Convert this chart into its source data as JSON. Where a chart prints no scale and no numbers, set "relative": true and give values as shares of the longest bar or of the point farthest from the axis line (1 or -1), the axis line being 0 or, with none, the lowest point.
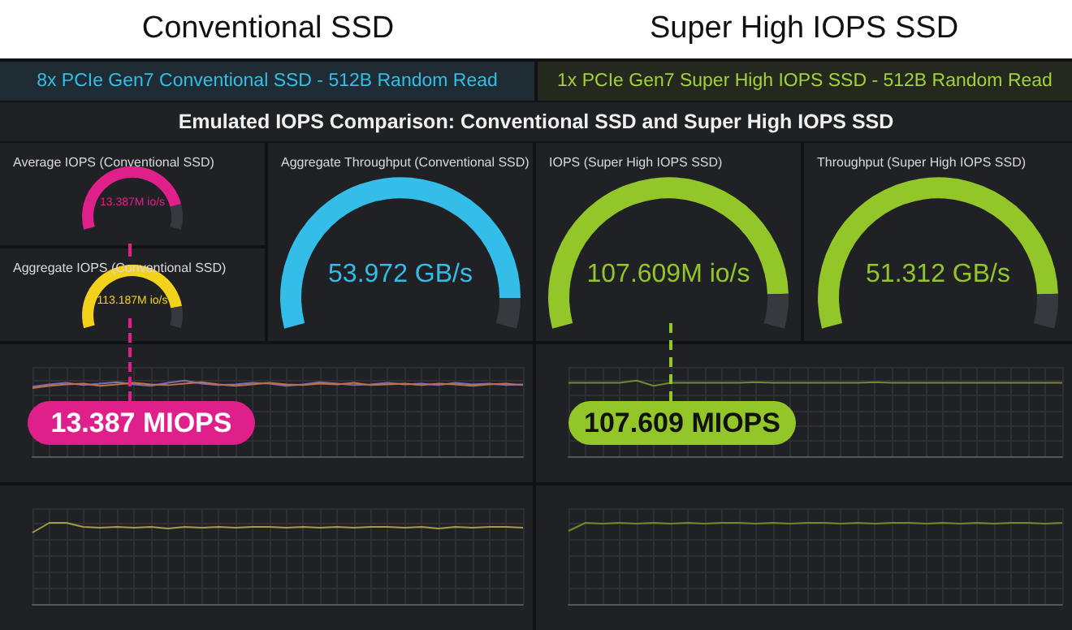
{
  "chart_data": [
    {
      "type": "other",
      "title": "Emulated IOPS Comparison: Conventional SSD and Super High IOPS SSD",
      "annotations": [
        "Conventional SSD",
        "Super High IOPS SSD",
        "8x PCIe Gen7 Conventional SSD - 512B Random Read",
        "1x PCIe Gen7 Super High IOPS SSD - 512B Random Read"
      ]
    },
    {
      "type": "donut",
      "title": "Average IOPS (Conventional SSD)",
      "categories": [
        null,
        null
      ],
      "values": [
        86,
        14
      ],
      "colors": [
        "#e0208a",
        "#38393e"
      ],
      "annotations": [
        "13.387M io/s"
      ]
    },
    {
      "type": "donut",
      "title": "Aggregate IOPS (Conventional SSD)",
      "categories": [
        null,
        null
      ],
      "values": [
        88,
        12
      ],
      "colors": [
        "#f2d21c",
        "#38393e"
      ],
      "annotations": [
        "113.187M io/s"
      ]
    },
    {
      "type": "donut",
      "title": "Aggregate Throughput (Conventional SSD)",
      "categories": [
        null,
        null
      ],
      "values": [
        93,
        7
      ],
      "colors": [
        "#33bde8",
        "#38393e"
      ],
      "annotations": [
        "53.972 GB/s"
      ]
    },
    {
      "type": "donut",
      "title": "IOPS (Super High IOPS SSD)",
      "categories": [
        null,
        null
      ],
      "values": [
        92,
        8
      ],
      "colors": [
        "#93c629",
        "#38393e"
      ],
      "annotations": [
        "107.609M io/s"
      ]
    },
    {
      "type": "donut",
      "title": "Throughput (Super High IOPS SSD)",
      "categories": [
        null,
        null
      ],
      "values": [
        92,
        8
      ],
      "colors": [
        "#93c629",
        "#38393e"
      ],
      "annotations": [
        "51.312 GB/s"
      ]
    },
    {
      "type": "line",
      "relative": true,
      "grid": true,
      "categories": [
        null,
        null,
        null,
        null,
        null,
        null,
        null,
        null,
        null,
        null,
        null,
        null,
        null,
        null,
        null,
        null,
        null,
        null,
        null,
        null,
        null,
        null,
        null,
        null,
        null,
        null,
        null,
        null,
        null,
        null
      ],
      "series": [
        {
          "color": "#7a6fb0",
          "values": [
            0.92,
            0.95,
            0.97,
            0.94,
            0.96,
            0.98,
            0.95,
            0.93,
            0.97,
            1,
            0.96,
            0.94,
            0.95,
            0.97,
            0.96,
            0.93,
            0.95,
            0.98,
            0.96,
            0.94,
            0.95,
            0.97,
            0.95,
            0.96,
            0.94,
            0.97,
            0.95,
            0.96,
            0.94,
            0.95
          ]
        },
        {
          "color": "#c2704a",
          "values": [
            0.9,
            0.93,
            0.95,
            0.96,
            0.93,
            0.95,
            0.97,
            0.95,
            0.94,
            0.96,
            0.98,
            0.95,
            0.93,
            0.95,
            0.97,
            0.95,
            0.94,
            0.96,
            0.95,
            0.97,
            0.94,
            0.95,
            0.96,
            0.94,
            0.96,
            0.95,
            0.93,
            0.95,
            0.96,
            0.94
          ]
        }
      ],
      "annotations": [
        "13.387 MIOPS"
      ]
    },
    {
      "type": "line",
      "relative": true,
      "grid": true,
      "categories": [
        null,
        null,
        null,
        null,
        null,
        null,
        null,
        null,
        null,
        null,
        null,
        null,
        null,
        null,
        null,
        null,
        null,
        null,
        null,
        null,
        null,
        null,
        null,
        null,
        null,
        null,
        null,
        null,
        null,
        null
      ],
      "series": [
        {
          "color": "#6f8a2c",
          "values": [
            0.97,
            0.97,
            0.97,
            0.97,
            1,
            0.93,
            0.97,
            0.97,
            0.97,
            0.97,
            0.97,
            0.98,
            0.97,
            0.97,
            0.97,
            0.97,
            0.97,
            0.97,
            0.98,
            0.97,
            0.97,
            0.97,
            0.97,
            0.97,
            0.97,
            0.97,
            0.97,
            0.97,
            0.97,
            0.97
          ]
        }
      ],
      "annotations": [
        "107.609 MIOPS"
      ]
    },
    {
      "type": "line",
      "relative": true,
      "grid": true,
      "categories": [
        null,
        null,
        null,
        null,
        null,
        null,
        null,
        null,
        null,
        null,
        null,
        null,
        null,
        null,
        null,
        null,
        null,
        null,
        null,
        null,
        null,
        null,
        null,
        null,
        null,
        null,
        null,
        null,
        null,
        null
      ],
      "series": [
        {
          "color": "#a89b45",
          "values": [
            0.88,
            1,
            1,
            0.95,
            0.94,
            0.95,
            0.94,
            0.95,
            0.93,
            0.95,
            0.94,
            0.95,
            0.94,
            0.95,
            0.95,
            0.94,
            0.95,
            0.94,
            0.95,
            0.94,
            0.95,
            0.95,
            0.94,
            0.95,
            0.93,
            0.95,
            0.94,
            0.95,
            0.95,
            0.94
          ]
        }
      ]
    },
    {
      "type": "line",
      "relative": true,
      "grid": true,
      "categories": [
        null,
        null,
        null,
        null,
        null,
        null,
        null,
        null,
        null,
        null,
        null,
        null,
        null,
        null,
        null,
        null,
        null,
        null,
        null,
        null,
        null,
        null,
        null,
        null,
        null,
        null,
        null,
        null,
        null,
        null
      ],
      "series": [
        {
          "color": "#6f8a2c",
          "values": [
            0.9,
            1,
            0.99,
            1,
            0.99,
            1,
            0.99,
            1,
            0.99,
            1,
            1,
            0.99,
            1,
            0.99,
            1,
            1,
            0.99,
            1,
            0.99,
            1,
            1,
            0.99,
            1,
            0.99,
            1,
            0.99,
            1,
            1,
            0.99,
            1
          ]
        }
      ]
    }
  ]
}
